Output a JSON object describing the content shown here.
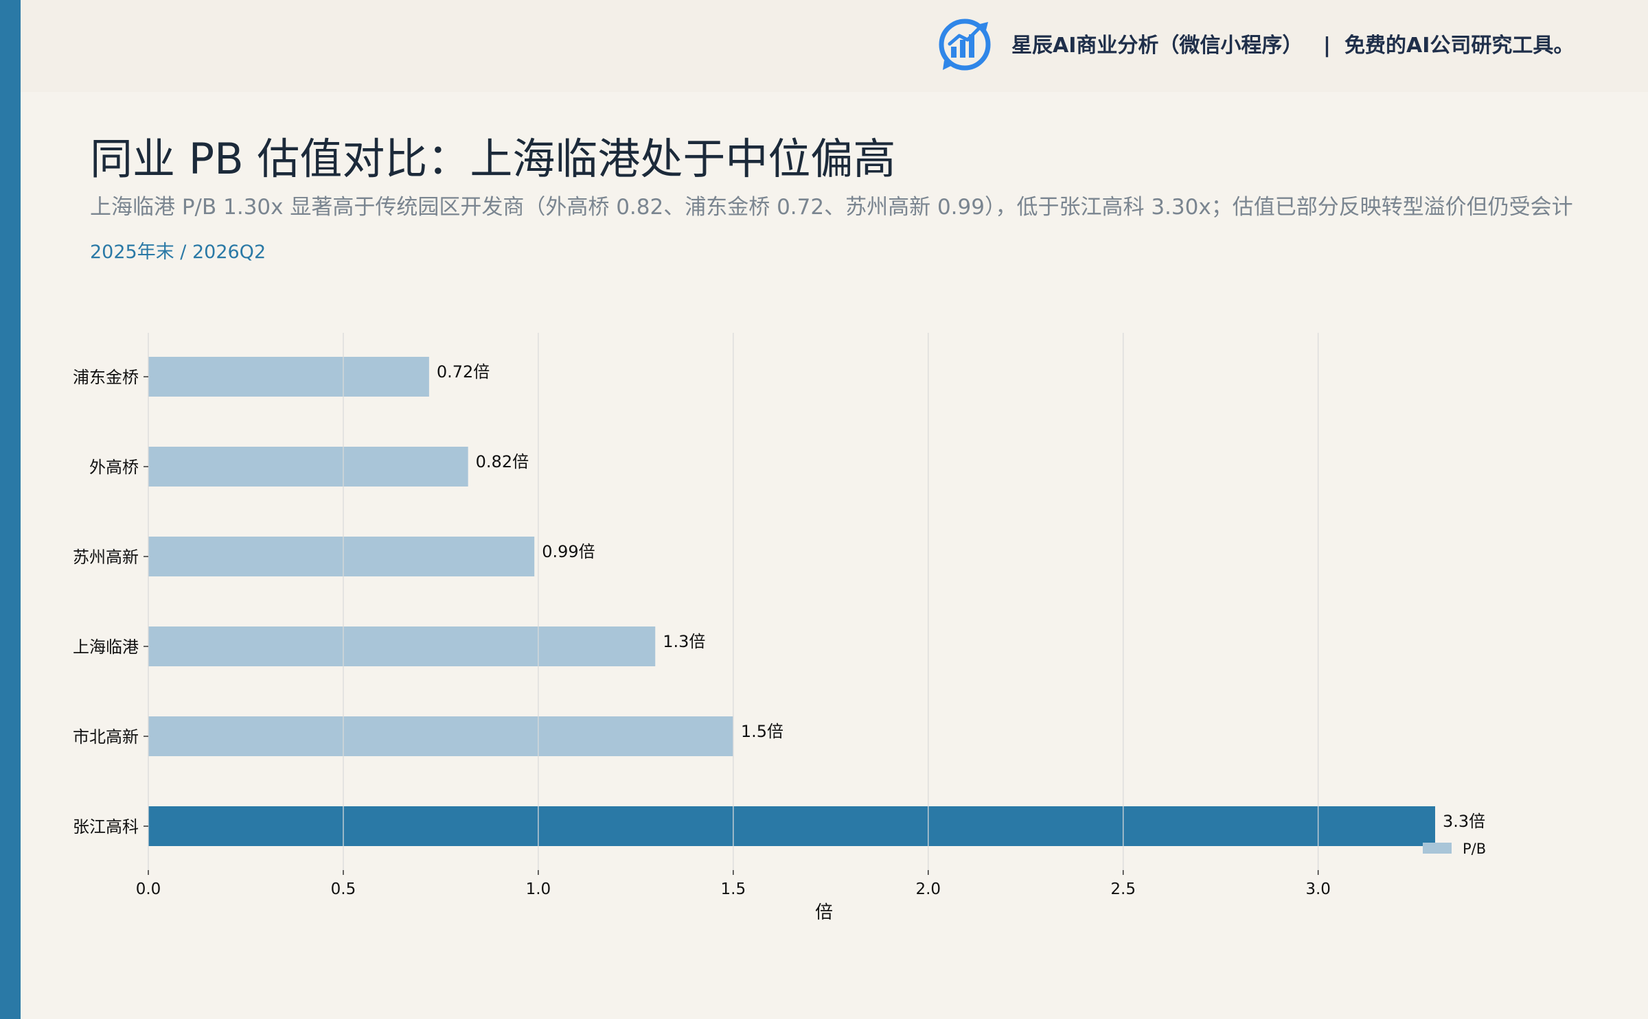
{
  "colors": {
    "accent": "#2a79a6",
    "bar_default": "#a9c5d8",
    "bar_highlight": "#2a79a6",
    "background": "#f6f3ed",
    "banner": "#f3efe8"
  },
  "header": {
    "logo_icon": "bar-chart-logo-icon",
    "brand_text": "星辰AI商业分析（微信小程序）",
    "separator": "|",
    "tagline": "免费的AI公司研究工具。"
  },
  "page": {
    "title": "同业 PB 估值对比：上海临港处于中位偏高",
    "subtitle": "上海临港 P/B 1.30x 显著高于传统园区开发商（外高桥 0.82、浦东金桥 0.72、苏州高新 0.99），低于张江高科 3.30x；估值已部分反映转型溢价但仍受会计",
    "period": "2025年末 / 2026Q2"
  },
  "chart_data": {
    "type": "bar",
    "orientation": "horizontal",
    "categories": [
      "浦东金桥",
      "外高桥",
      "苏州高新",
      "上海临港",
      "市北高新",
      "张江高科"
    ],
    "series": [
      {
        "name": "P/B",
        "values": [
          0.72,
          0.82,
          0.99,
          1.3,
          1.5,
          3.3
        ]
      }
    ],
    "data_labels": [
      "0.72倍",
      "0.82倍",
      "0.99倍",
      "1.3倍",
      "1.5倍",
      "3.3倍"
    ],
    "highlight_category": "张江高科",
    "xlabel": "倍",
    "ylabel": "",
    "xlim": [
      0,
      3.3
    ],
    "xticks": [
      0.0,
      0.5,
      1.0,
      1.5,
      2.0,
      2.5,
      3.0
    ],
    "xtick_labels": [
      "0.0",
      "0.5",
      "1.0",
      "1.5",
      "2.0",
      "2.5",
      "3.0"
    ],
    "grid": "vertical",
    "legend": {
      "placement": "bottom-right",
      "entries": [
        "P/B"
      ]
    }
  }
}
